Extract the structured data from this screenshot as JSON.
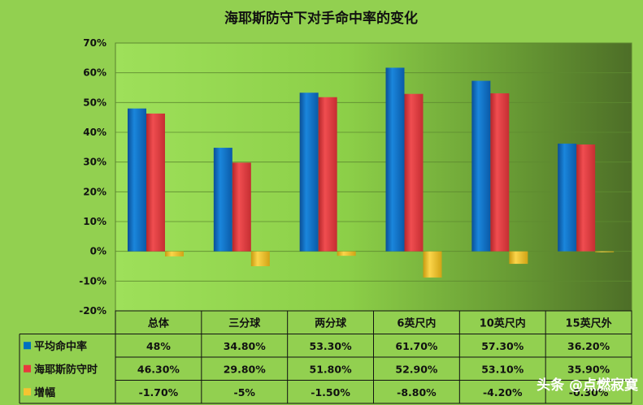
{
  "chart_data": {
    "type": "bar",
    "title": "海耶斯防守下对手命中率的变化",
    "categories": [
      "总体",
      "三分球",
      "两分球",
      "6英尺内",
      "10英尺内",
      "15英尺外"
    ],
    "ylim": [
      -20,
      70
    ],
    "yticks": [
      "70%",
      "60%",
      "50%",
      "40%",
      "30%",
      "20%",
      "10%",
      "0%",
      "-10%",
      "-20%"
    ],
    "grid": true,
    "legend": "table-left",
    "series": [
      {
        "name": "平均命中率",
        "color": "#0070c0",
        "values": [
          48,
          34.8,
          53.3,
          61.7,
          57.3,
          36.2
        ],
        "labels": [
          "48%",
          "34.80%",
          "53.30%",
          "61.70%",
          "57.30%",
          "36.20%"
        ]
      },
      {
        "name": "海耶斯防守时",
        "color": "#e8383d",
        "values": [
          46.3,
          29.8,
          51.8,
          52.9,
          53.1,
          35.9
        ],
        "labels": [
          "46.30%",
          "29.80%",
          "51.80%",
          "52.90%",
          "53.10%",
          "35.90%"
        ]
      },
      {
        "name": "增幅",
        "color": "#f5c431",
        "values": [
          -1.7,
          -5,
          -1.5,
          -8.8,
          -4.2,
          -0.3
        ],
        "labels": [
          "-1.70%",
          "-5%",
          "-1.50%",
          "-8.80%",
          "-4.20%",
          "-0.30%"
        ]
      }
    ]
  },
  "watermark": "头条 @点燃寂寞"
}
